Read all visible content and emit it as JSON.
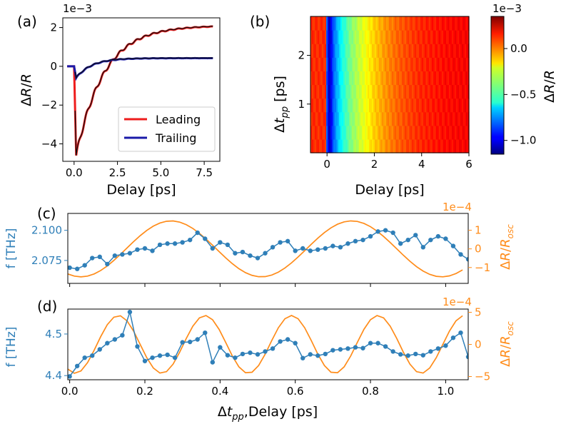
{
  "colors": {
    "leading": "#ee1c1c",
    "trailing": "#1a1aa8",
    "fit": "#111111",
    "freq": "#2f7fb8",
    "osc": "#ff8c1a"
  },
  "chart_data": [
    {
      "id": "a",
      "panel_label": "(a)",
      "type": "line",
      "xlabel": "Delay [ps]",
      "ylabel": "ΔR/R",
      "offset_text": "1e−3",
      "xlim": [
        -0.65,
        8.4
      ],
      "ylim": [
        -4.9,
        2.5
      ],
      "xticks": [
        0,
        2.5,
        5,
        7.5
      ],
      "xtick_labels": [
        "0.0",
        "2.5",
        "5.0",
        "7.5"
      ],
      "yticks": [
        -4,
        -2,
        0,
        2
      ],
      "ytick_labels": [
        "−4",
        "−2",
        "0",
        "2"
      ],
      "legend": {
        "position": "bottom-right",
        "entries": [
          "Leading",
          "Trailing"
        ]
      },
      "series": [
        {
          "name": "Leading",
          "model": "leading",
          "baseline": 0,
          "dip": -4.6,
          "plateau": 2.1,
          "tau_ps": 1.6,
          "osc_amp": 0.15,
          "osc_freq_thz": 2.08,
          "x_range": [
            -0.4,
            8
          ]
        },
        {
          "name": "Trailing",
          "model": "trailing",
          "baseline": 0,
          "dip": -0.6,
          "plateau": 0.42,
          "tau_ps": 0.9,
          "osc_amp": 0.03,
          "osc_freq_thz": 2.08,
          "x_range": [
            -0.4,
            8
          ]
        }
      ]
    },
    {
      "id": "b",
      "panel_label": "(b)",
      "type": "heatmap",
      "xlabel": "Delay [ps]",
      "ylabel": "Δt_pp [ps]",
      "xlim": [
        -0.7,
        6
      ],
      "ylim": [
        0,
        2.8
      ],
      "xticks": [
        0,
        2,
        4,
        6
      ],
      "xtick_labels": [
        "0",
        "2",
        "4",
        "6"
      ],
      "yticks": [
        1,
        2
      ],
      "ytick_labels": [
        "1",
        "2"
      ],
      "colorbar": {
        "label": "ΔR/R",
        "offset_text": "1e−3",
        "range": [
          -1.15,
          0.35
        ],
        "ticks": [
          0.0,
          -0.5,
          -1.0
        ],
        "tick_labels": [
          "0.0",
          "−0.5",
          "−1.0"
        ]
      },
      "profile_delay_ps": [
        -0.7,
        -0.05,
        0.0,
        0.12,
        0.3,
        0.6,
        1.0,
        1.5,
        2.0,
        2.5,
        3.0,
        3.5,
        4.0,
        5.0,
        6.0
      ],
      "profile_value": [
        0.1,
        0.1,
        -0.95,
        -1.05,
        -0.8,
        -0.58,
        -0.4,
        -0.26,
        -0.14,
        -0.05,
        0.02,
        0.07,
        0.11,
        0.15,
        0.17
      ]
    },
    {
      "id": "c",
      "panel_label": "(c)",
      "type": "line",
      "xlim": [
        -0.005,
        1.06
      ],
      "left_axis": {
        "label": "f [THz]",
        "ylim": [
          2.056,
          2.114
        ],
        "ticks": [
          2.075,
          2.1
        ],
        "tick_labels": [
          "2.075",
          "2.100"
        ]
      },
      "right_axis": {
        "label": "ΔR/R_osc",
        "offset_text": "1e−4",
        "ylim": [
          -1.85,
          1.9
        ],
        "ticks": [
          -1,
          0,
          1
        ],
        "tick_labels": [
          "−1",
          "0",
          "1"
        ]
      },
      "freq_x": [
        0.0,
        0.02,
        0.04,
        0.06,
        0.08,
        0.1,
        0.12,
        0.14,
        0.16,
        0.18,
        0.2,
        0.22,
        0.24,
        0.26,
        0.28,
        0.3,
        0.32,
        0.34,
        0.36,
        0.38,
        0.4,
        0.42,
        0.44,
        0.46,
        0.48,
        0.5,
        0.52,
        0.54,
        0.56,
        0.58,
        0.6,
        0.62,
        0.64,
        0.66,
        0.68,
        0.7,
        0.72,
        0.74,
        0.76,
        0.78,
        0.8,
        0.82,
        0.84,
        0.86,
        0.88,
        0.9,
        0.92,
        0.94,
        0.96,
        0.98,
        1.0,
        1.02,
        1.04,
        1.06
      ],
      "freq_y": [
        2.069,
        2.068,
        2.071,
        2.077,
        2.078,
        2.072,
        2.079,
        2.08,
        2.081,
        2.084,
        2.085,
        2.083,
        2.088,
        2.089,
        2.089,
        2.09,
        2.092,
        2.098,
        2.093,
        2.085,
        2.09,
        2.088,
        2.081,
        2.082,
        2.079,
        2.077,
        2.081,
        2.086,
        2.09,
        2.091,
        2.083,
        2.085,
        2.083,
        2.084,
        2.085,
        2.087,
        2.086,
        2.089,
        2.091,
        2.092,
        2.095,
        2.099,
        2.1,
        2.098,
        2.089,
        2.092,
        2.096,
        2.086,
        2.092,
        2.095,
        2.093,
        2.087,
        2.08,
        2.076
      ],
      "osc_params": {
        "amp": 1.5,
        "period_ps": 0.48,
        "peak_ps": 0.27
      }
    },
    {
      "id": "d",
      "panel_label": "(d)",
      "type": "line",
      "xlabel": "Δt_pp,Delay [ps]",
      "xlim": [
        -0.005,
        1.06
      ],
      "xticks": [
        0.0,
        0.2,
        0.4,
        0.6,
        0.8,
        1.0
      ],
      "xtick_labels": [
        "0.0",
        "0.2",
        "0.4",
        "0.6",
        "0.8",
        "1.0"
      ],
      "left_axis": {
        "label": "f [THz]",
        "ylim": [
          4.39,
          4.56
        ],
        "ticks": [
          4.4,
          4.5
        ],
        "tick_labels": [
          "4.4",
          "4.5"
        ]
      },
      "right_axis": {
        "label": "ΔR/R_osc",
        "offset_text": "1e−4",
        "ylim": [
          -5.5,
          5.5
        ],
        "ticks": [
          -5,
          0,
          5
        ],
        "tick_labels": [
          "−5",
          "0",
          "5"
        ]
      },
      "freq_x": [
        0.0,
        0.02,
        0.04,
        0.06,
        0.08,
        0.1,
        0.12,
        0.14,
        0.16,
        0.18,
        0.2,
        0.22,
        0.24,
        0.26,
        0.28,
        0.3,
        0.32,
        0.34,
        0.36,
        0.38,
        0.4,
        0.42,
        0.44,
        0.46,
        0.48,
        0.5,
        0.52,
        0.54,
        0.56,
        0.58,
        0.6,
        0.62,
        0.64,
        0.66,
        0.68,
        0.7,
        0.72,
        0.74,
        0.76,
        0.78,
        0.8,
        0.82,
        0.84,
        0.86,
        0.88,
        0.9,
        0.92,
        0.94,
        0.96,
        0.98,
        1.0,
        1.02,
        1.04,
        1.06
      ],
      "freq_y": [
        4.398,
        4.423,
        4.443,
        4.448,
        4.463,
        4.478,
        4.487,
        4.497,
        4.553,
        4.47,
        4.435,
        4.443,
        4.448,
        4.45,
        4.443,
        4.48,
        4.481,
        4.487,
        4.503,
        4.432,
        4.468,
        4.449,
        4.443,
        4.452,
        4.455,
        4.451,
        4.458,
        4.465,
        4.482,
        4.487,
        4.478,
        4.442,
        4.451,
        4.448,
        4.452,
        4.461,
        4.463,
        4.465,
        4.468,
        4.466,
        4.478,
        4.478,
        4.47,
        4.458,
        4.451,
        4.448,
        4.452,
        4.449,
        4.458,
        4.465,
        4.472,
        4.491,
        4.503,
        4.445
      ],
      "osc_params": {
        "amp": 4.5,
        "period_ps": 0.23,
        "peak_ps": 0.13
      }
    }
  ]
}
